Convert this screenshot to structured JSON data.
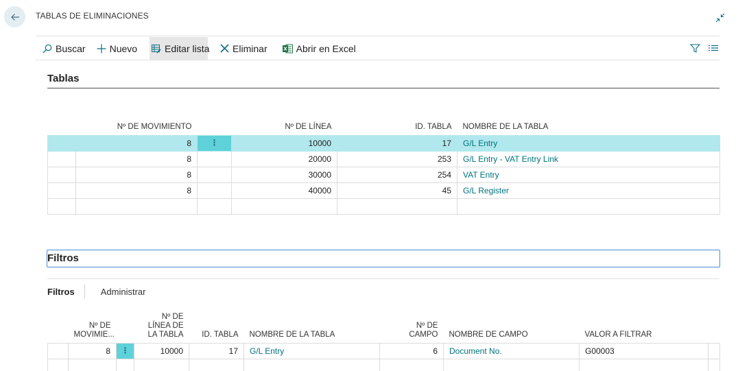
{
  "header": {
    "title": "TABLAS DE ELIMINACIONES"
  },
  "actions": [
    {
      "label": "Buscar",
      "icon": "search-icon"
    },
    {
      "label": "Nuevo",
      "icon": "plus-icon"
    },
    {
      "label": "Editar lista",
      "icon": "edit-list-icon"
    },
    {
      "label": "Eliminar",
      "icon": "delete-x-icon"
    },
    {
      "label": "Abrir en Excel",
      "icon": "excel-icon"
    }
  ],
  "tablas": {
    "title": "Tablas",
    "columns": [
      "Nº DE MOVIMIENTO",
      "Nº DE LÍNEA",
      "ID. TABLA",
      "NOMBRE DE LA TABLA"
    ],
    "rows": [
      {
        "mov": "8",
        "linea": "10000",
        "id": "17",
        "nombre": "G/L Entry"
      },
      {
        "mov": "8",
        "linea": "20000",
        "id": "253",
        "nombre": "G/L Entry - VAT Entry Link"
      },
      {
        "mov": "8",
        "linea": "30000",
        "id": "254",
        "nombre": "VAT Entry"
      },
      {
        "mov": "8",
        "linea": "40000",
        "id": "45",
        "nombre": "G/L Register"
      }
    ]
  },
  "filtros": {
    "title": "Filtros",
    "tabs": [
      "Filtros",
      "Administrar"
    ],
    "columns": {
      "mov_line1": "Nº DE",
      "mov_line2": "MOVIMIE...",
      "linea_line1": "Nº DE",
      "linea_line2": "LÍNEA DE",
      "linea_line3": "LA TABLA",
      "id": "ID. TABLA",
      "nombre_tabla": "NOMBRE DE LA TABLA",
      "campo_line1": "Nº DE",
      "campo_line2": "CAMPO",
      "nombre_campo": "NOMBRE DE CAMPO",
      "valor": "VALOR A FILTRAR"
    },
    "rows": [
      {
        "mov": "8",
        "linea": "10000",
        "id": "17",
        "nombre_tabla": "G/L Entry",
        "campo": "6",
        "nombre_campo": "Document No.",
        "valor": "G00003"
      }
    ]
  },
  "colors": {
    "accent": "#00727e",
    "selected_row": "#b1e8ed",
    "focus_border": "#4e8bd8"
  }
}
